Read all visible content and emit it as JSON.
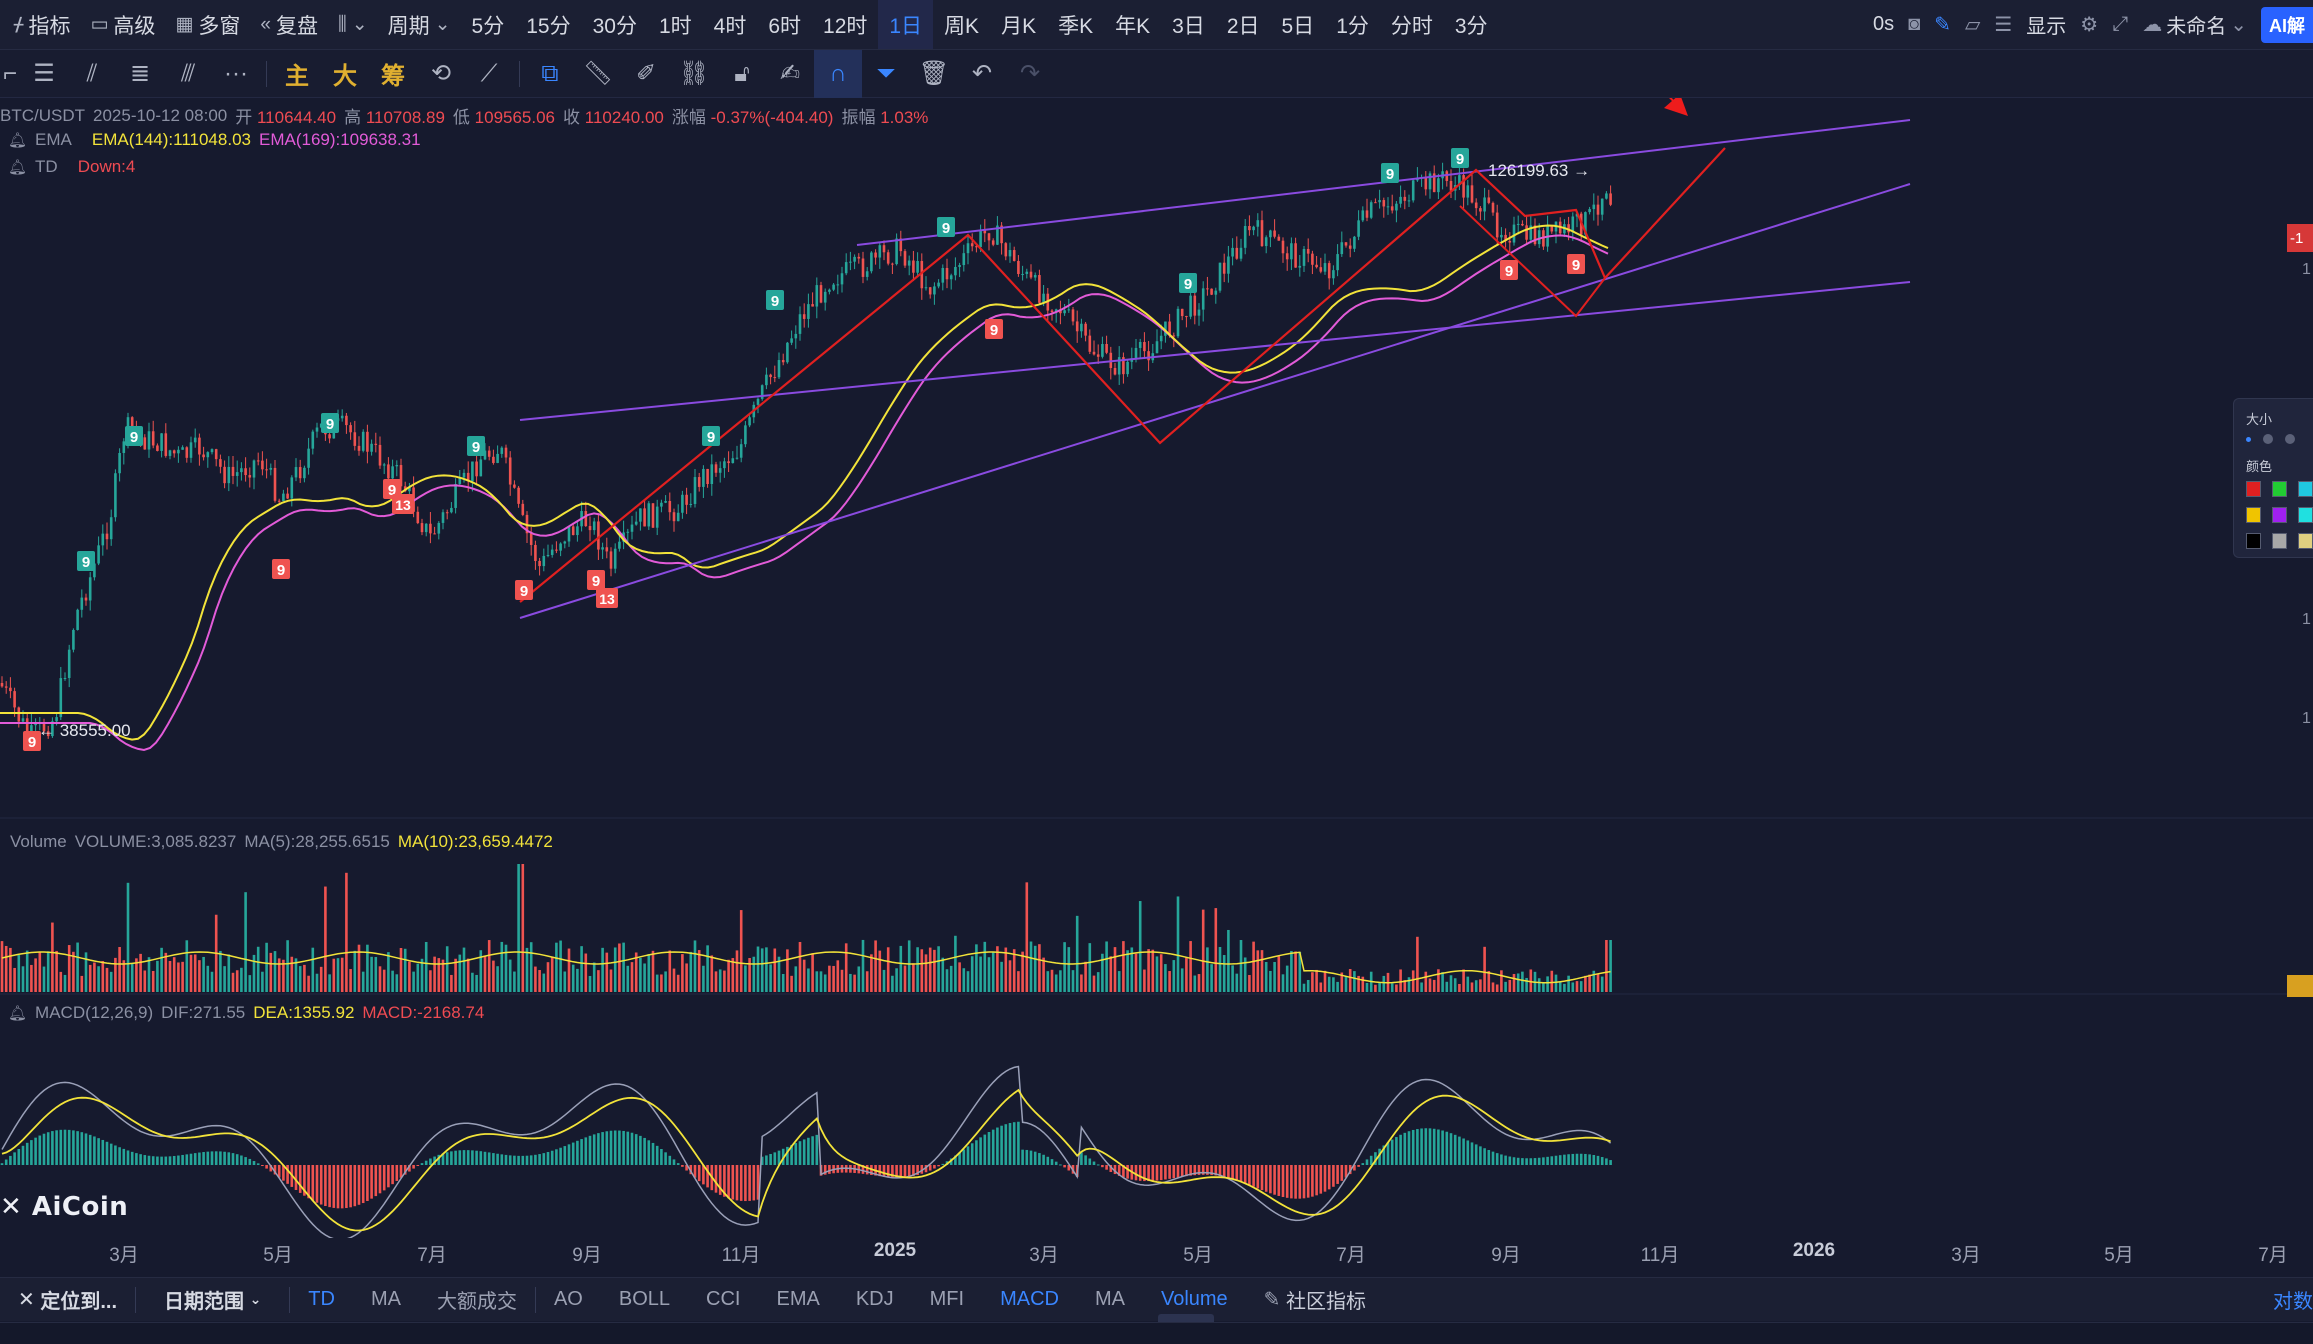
{
  "topbar": {
    "indicator_label": "指标",
    "advanced_label": "高级",
    "multiwindow_label": "多窗",
    "replay_label": "复盘",
    "cycle_label": "周期",
    "periods": [
      "5分",
      "15分",
      "30分",
      "1时",
      "4时",
      "6时",
      "12时",
      "1日",
      "周K",
      "月K",
      "季K",
      "年K",
      "3日",
      "2日",
      "5日",
      "1分",
      "分时",
      "3分"
    ],
    "active_period": "1日",
    "timer": "0s",
    "display_label": "显示",
    "layout_name": "未命名",
    "ai_label": "AI解"
  },
  "drawbar": {
    "main_label": "主",
    "big_label": "大",
    "chip_label": "筹"
  },
  "legend": {
    "symbol": "BTC/USDT",
    "datetime": "2025-10-12 08:00",
    "open_label": "开",
    "open": "110644.40",
    "high_label": "高",
    "high": "110708.89",
    "low_label": "低",
    "low": "109565.06",
    "close_label": "收",
    "close": "110240.00",
    "change_label": "涨幅",
    "change": "-0.37%(-404.40)",
    "amp_label": "振幅",
    "amp": "1.03%",
    "ema_name": "EMA",
    "ema144": "EMA(144):111048.03",
    "ema169": "EMA(169):109638.31",
    "td_name": "TD",
    "td_value": "Down:4",
    "vol_name": "Volume",
    "vol_value": "VOLUME:3,085.8237",
    "vol_ma5": "MA(5):28,255.6515",
    "vol_ma10": "MA(10):23,659.4472",
    "macd_name": "MACD(12,26,9)",
    "macd_dif": "DIF:271.55",
    "macd_dea": "DEA:1355.92",
    "macd_val": "MACD:-2168.74"
  },
  "annotations": {
    "high_price": "126199.63",
    "low_price": "38555.00",
    "td_marks": [
      "9",
      "13"
    ]
  },
  "palette": {
    "size_label": "大小",
    "color_label": "颜色",
    "colors": [
      "#e02020",
      "#22cc33",
      "#20c8e0",
      "#f0c400",
      "#a020f0",
      "#20e0e0",
      "#000000",
      "#a8a8a8",
      "#e0d080"
    ]
  },
  "xaxis": {
    "labels": [
      "3月",
      "5月",
      "7月",
      "9月",
      "11月",
      "2025",
      "3月",
      "5月",
      "7月",
      "9月",
      "11月",
      "2026",
      "3月",
      "5月",
      "7月"
    ],
    "bold": [
      "2025",
      "2026"
    ]
  },
  "bottombar": {
    "locate_label": "定位到...",
    "range_label": "日期范围",
    "indicators": [
      "TD",
      "MA",
      "大额成交",
      "AO",
      "BOLL",
      "CCI",
      "EMA",
      "KDJ",
      "MFI",
      "MACD",
      "MA",
      "Volume"
    ],
    "active": [
      "TD",
      "MACD",
      "Volume"
    ],
    "community_label": "社区指标",
    "log_label": "对数"
  },
  "logo": "AiCoin",
  "colors": {
    "background": "#161a2e",
    "up": "#26a69a",
    "down": "#ef5350",
    "accent": "#3a86ff",
    "ema144": "#f2e33a",
    "ema169": "#e25bd8",
    "trendline": "#8a4be0",
    "zigzag": "#e02020"
  }
}
